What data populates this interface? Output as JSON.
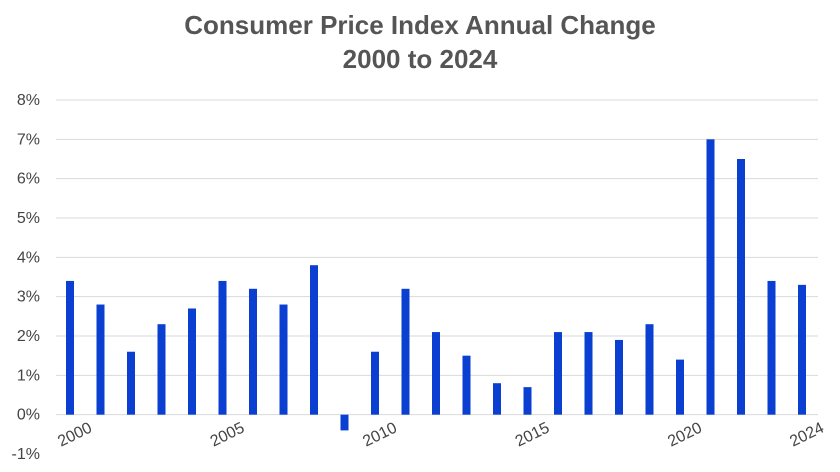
{
  "chart_data": {
    "type": "bar",
    "title": "Consumer Price Index Annual Change",
    "subtitle": "2000 to 2024",
    "xlabel": "",
    "ylabel": "",
    "categories": [
      2000,
      2001,
      2002,
      2003,
      2004,
      2005,
      2006,
      2007,
      2008,
      2009,
      2010,
      2011,
      2012,
      2013,
      2014,
      2015,
      2016,
      2017,
      2018,
      2019,
      2020,
      2021,
      2022,
      2023,
      2024
    ],
    "values": [
      3.4,
      2.8,
      1.6,
      2.3,
      2.7,
      3.4,
      3.2,
      2.8,
      3.8,
      -0.4,
      1.6,
      3.2,
      2.1,
      1.5,
      0.8,
      0.7,
      2.1,
      2.1,
      1.9,
      2.3,
      1.4,
      7.0,
      6.5,
      3.4,
      3.3
    ],
    "ylim": [
      -1,
      8
    ],
    "y_ticks": [
      -1,
      0,
      1,
      2,
      3,
      4,
      5,
      6,
      7,
      8
    ],
    "y_tick_labels": [
      "-1%",
      "0%",
      "1%",
      "2%",
      "3%",
      "4%",
      "5%",
      "6%",
      "7%",
      "8%"
    ],
    "x_tick_labels": [
      "2000",
      "2005",
      "2010",
      "2015",
      "2020",
      "2024"
    ],
    "x_tick_years": [
      2000,
      2005,
      2010,
      2015,
      2020,
      2024
    ],
    "grid": true,
    "legend": "none",
    "bar_color": "#0A3FD1",
    "grid_color": "#D9D9D9",
    "text_color": "#555555"
  }
}
